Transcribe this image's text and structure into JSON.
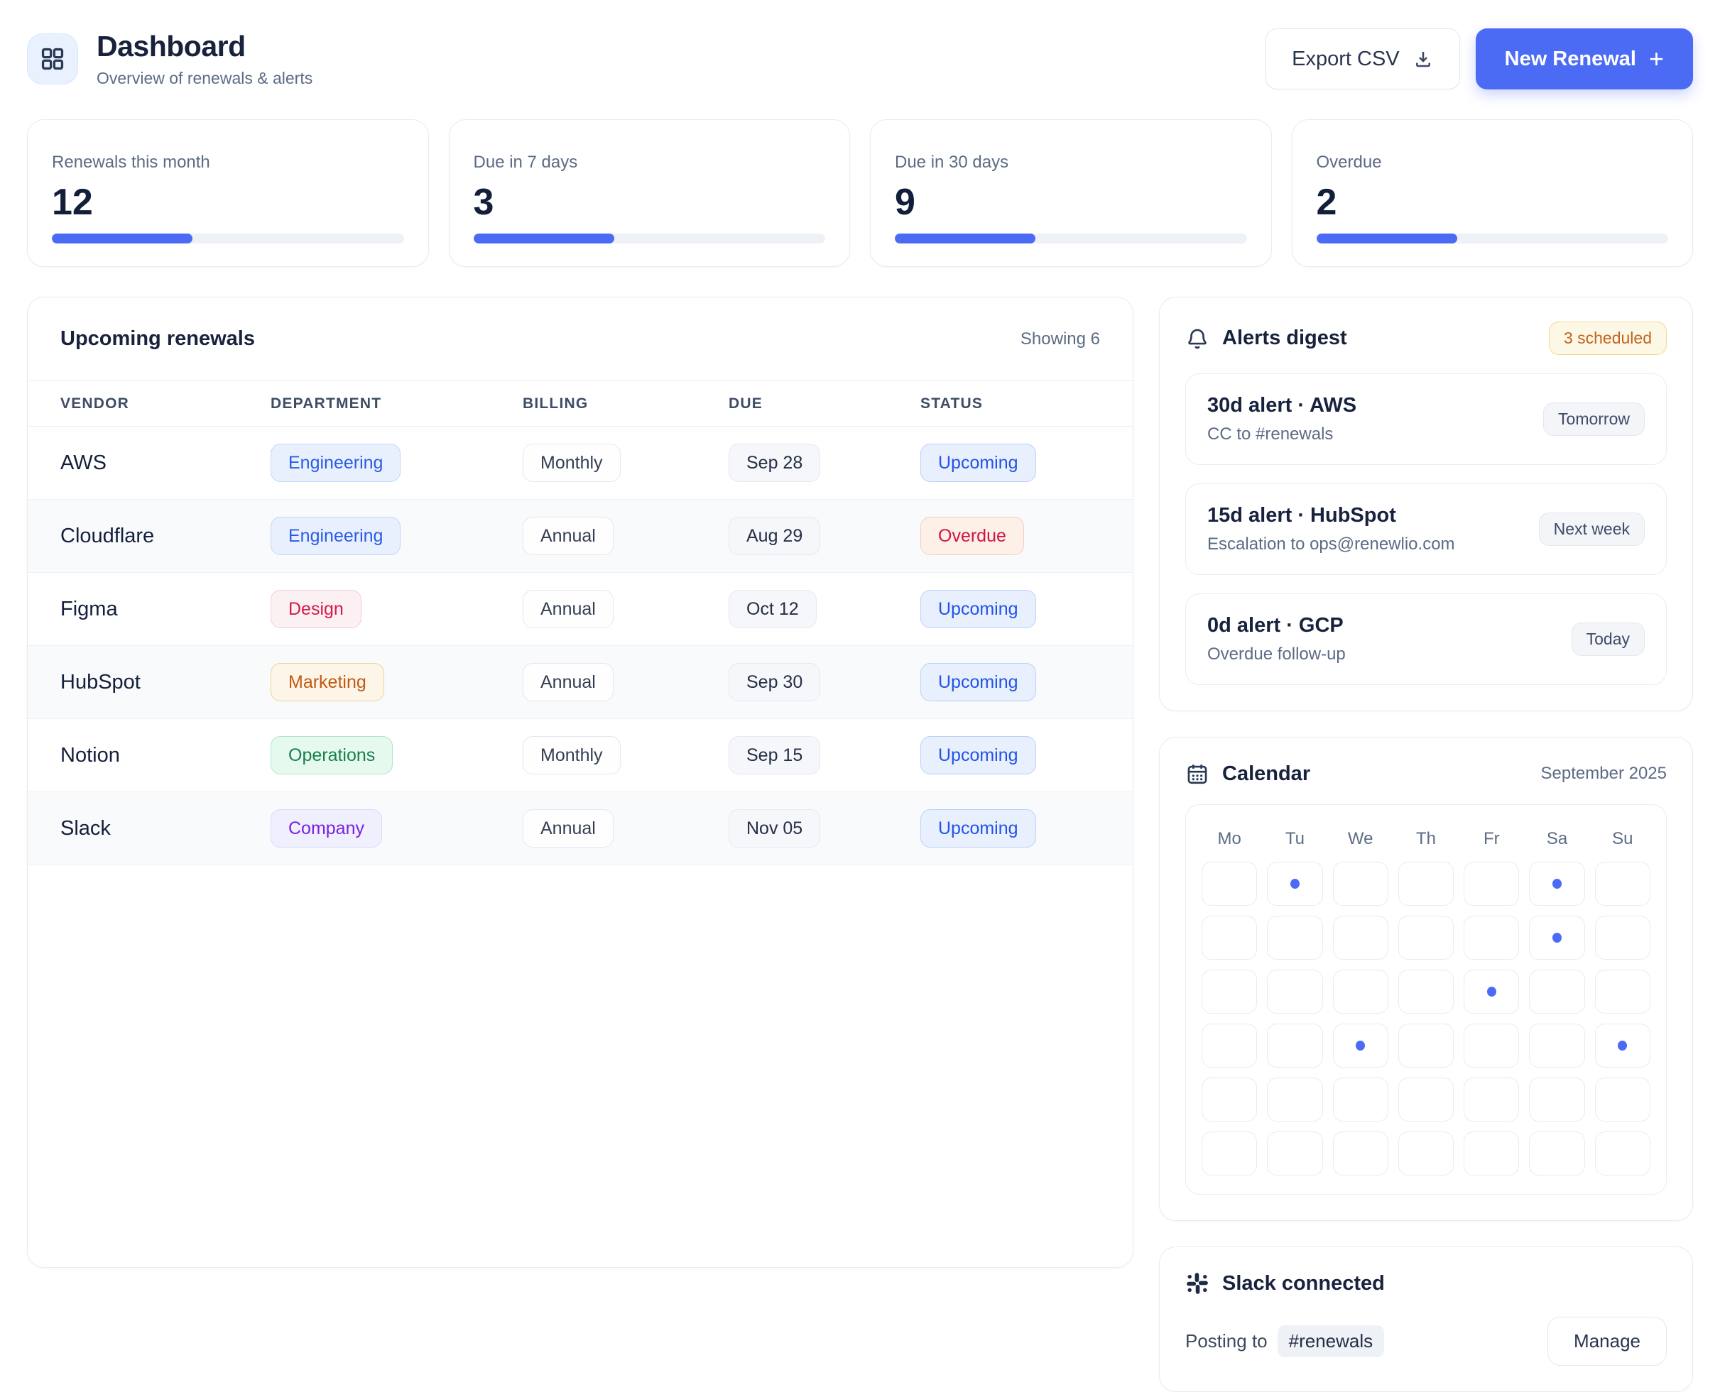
{
  "header": {
    "title": "Dashboard",
    "subtitle": "Overview of renewals & alerts",
    "export_label": "Export CSV",
    "new_renewal_label": "New Renewal",
    "plus": "+"
  },
  "colors": {
    "accent_blue": "#4c6bf5",
    "status_upcoming": "#2353e8",
    "status_overdue": "#d01440",
    "scheduled_badge": "#c2641c"
  },
  "stats": [
    {
      "label": "Renewals this month",
      "value": "12",
      "bar_style": "width:40%"
    },
    {
      "label": "Due in 7 days",
      "value": "3",
      "bar_style": "width:40%"
    },
    {
      "label": "Due in 30 days",
      "value": "9",
      "bar_style": "width:40%"
    },
    {
      "label": "Overdue",
      "value": "2",
      "bar_style": "width:40%"
    }
  ],
  "table": {
    "title": "Upcoming renewals",
    "showing": "Showing 6",
    "columns": [
      "VENDOR",
      "DEPARTMENT",
      "BILLING",
      "DUE",
      "STATUS"
    ],
    "rows": [
      {
        "vendor": "AWS",
        "department": "Engineering",
        "dept_class": "badge badge-blue",
        "billing": "Monthly",
        "due": "Sep 28",
        "status": "Upcoming",
        "status_class": "badge badge-status-blue"
      },
      {
        "vendor": "Cloudflare",
        "department": "Engineering",
        "dept_class": "badge badge-blue",
        "billing": "Annual",
        "due": "Aug 29",
        "status": "Overdue",
        "status_class": "badge badge-status-red"
      },
      {
        "vendor": "Figma",
        "department": "Design",
        "dept_class": "badge badge-red",
        "billing": "Annual",
        "due": "Oct 12",
        "status": "Upcoming",
        "status_class": "badge badge-status-blue"
      },
      {
        "vendor": "HubSpot",
        "department": "Marketing",
        "dept_class": "badge badge-orange",
        "billing": "Annual",
        "due": "Sep 30",
        "status": "Upcoming",
        "status_class": "badge badge-status-blue"
      },
      {
        "vendor": "Notion",
        "department": "Operations",
        "dept_class": "badge badge-green",
        "billing": "Monthly",
        "due": "Sep 15",
        "status": "Upcoming",
        "status_class": "badge badge-status-blue"
      },
      {
        "vendor": "Slack",
        "department": "Company",
        "dept_class": "badge badge-purple",
        "billing": "Annual",
        "due": "Nov 05",
        "status": "Upcoming",
        "status_class": "badge badge-status-blue"
      }
    ]
  },
  "alerts": {
    "title": "Alerts digest",
    "badge": "3 scheduled",
    "items": [
      {
        "title": "30d alert · AWS",
        "subtitle": "CC to #renewals",
        "when": "Tomorrow"
      },
      {
        "title": "15d alert · HubSpot",
        "subtitle": "Escalation to ops@renewlio.com",
        "when": "Next week"
      },
      {
        "title": "0d alert · GCP",
        "subtitle": "Overdue follow-up",
        "when": "Today"
      }
    ]
  },
  "calendar": {
    "title": "Calendar",
    "month": "September 2025",
    "day_headers": [
      "Mo",
      "Tu",
      "We",
      "Th",
      "Fr",
      "Sa",
      "Su"
    ],
    "rows": 6,
    "cols": 7,
    "dot_cells": [
      1,
      5,
      12,
      18,
      23,
      27
    ]
  },
  "slack": {
    "title": "Slack connected",
    "posting_prefix": "Posting to",
    "channel": "#renewals",
    "manage_label": "Manage"
  }
}
